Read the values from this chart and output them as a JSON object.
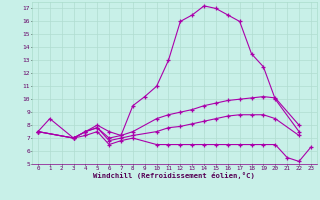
{
  "background_color": "#c8f0e8",
  "grid_color": "#b0ddd0",
  "line_color": "#aa00aa",
  "xlabel": "Windchill (Refroidissement éolien,°C)",
  "xlim": [
    -0.5,
    23.5
  ],
  "ylim": [
    5,
    17.5
  ],
  "yticks": [
    5,
    6,
    7,
    8,
    9,
    10,
    11,
    12,
    13,
    14,
    15,
    16,
    17
  ],
  "xticks": [
    0,
    1,
    2,
    3,
    4,
    5,
    6,
    7,
    8,
    9,
    10,
    11,
    12,
    13,
    14,
    15,
    16,
    17,
    18,
    19,
    20,
    21,
    22,
    23
  ],
  "series": [
    {
      "x": [
        0,
        1,
        3,
        4,
        5,
        6,
        7,
        8,
        9,
        10,
        11,
        12,
        13,
        14,
        15,
        16,
        17,
        18,
        19,
        20,
        22
      ],
      "y": [
        7.5,
        8.5,
        7.0,
        7.5,
        8.0,
        7.5,
        7.2,
        9.5,
        10.2,
        11.0,
        13.0,
        16.0,
        16.5,
        17.2,
        17.0,
        16.5,
        16.0,
        13.5,
        12.5,
        10.0,
        7.5
      ]
    },
    {
      "x": [
        0,
        3,
        4,
        5,
        6,
        7,
        8,
        10,
        11,
        12,
        13,
        14,
        15,
        16,
        17,
        18,
        19,
        20,
        22
      ],
      "y": [
        7.5,
        7.0,
        7.5,
        7.8,
        7.0,
        7.2,
        7.5,
        8.5,
        8.8,
        9.0,
        9.2,
        9.5,
        9.7,
        9.9,
        10.0,
        10.1,
        10.2,
        10.1,
        8.0
      ]
    },
    {
      "x": [
        0,
        3,
        4,
        5,
        6,
        7,
        8,
        10,
        11,
        12,
        13,
        14,
        15,
        16,
        17,
        18,
        19,
        20,
        22
      ],
      "y": [
        7.5,
        7.0,
        7.5,
        7.8,
        6.8,
        7.0,
        7.2,
        7.5,
        7.8,
        7.9,
        8.1,
        8.3,
        8.5,
        8.7,
        8.8,
        8.8,
        8.8,
        8.5,
        7.2
      ]
    },
    {
      "x": [
        0,
        3,
        4,
        5,
        6,
        7,
        8,
        10,
        11,
        12,
        13,
        14,
        15,
        16,
        17,
        18,
        19,
        20,
        21,
        22,
        23
      ],
      "y": [
        7.5,
        7.0,
        7.2,
        7.5,
        6.5,
        6.8,
        7.0,
        6.5,
        6.5,
        6.5,
        6.5,
        6.5,
        6.5,
        6.5,
        6.5,
        6.5,
        6.5,
        6.5,
        5.5,
        5.2,
        6.3
      ]
    }
  ]
}
